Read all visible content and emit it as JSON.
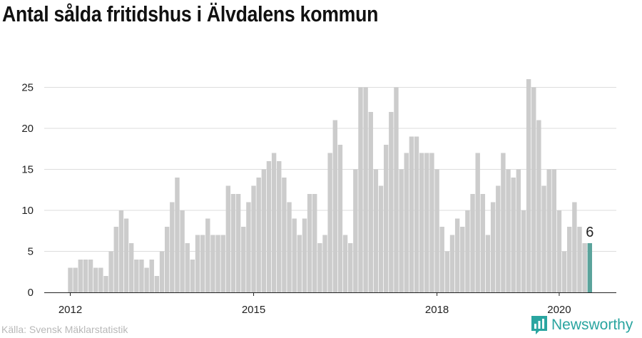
{
  "title": "Antal sålda fritidshus i Älvdalens kommun",
  "source": "Källa: Svensk Mäklarstatistik",
  "brand": {
    "name": "Newsworthy",
    "color": "#2aa5a0",
    "icon": "newsworthy-logo-icon"
  },
  "colors": {
    "bar": "#cccccc",
    "highlight": "#5aa39b",
    "grid": "#dddddd",
    "axis": "#222222"
  },
  "chart_data": {
    "type": "bar",
    "ylim": [
      0,
      26
    ],
    "yticks": [
      0,
      5,
      10,
      15,
      20,
      25
    ],
    "xticks": [
      {
        "label": "2012",
        "index": 0
      },
      {
        "label": "2015",
        "index": 36
      },
      {
        "label": "2018",
        "index": 72
      },
      {
        "label": "2020",
        "index": 96
      }
    ],
    "series": [
      {
        "values": [
          3,
          3,
          4,
          4,
          4,
          3,
          3,
          2,
          5,
          8,
          10,
          9,
          6,
          4,
          4,
          3,
          4,
          2,
          5,
          8,
          11,
          14,
          10,
          6,
          4,
          7,
          7,
          9,
          7,
          7,
          7,
          13,
          12,
          12,
          8,
          11,
          13,
          14,
          15,
          16,
          17,
          16,
          14,
          11,
          9,
          7,
          9,
          12,
          12,
          6,
          7,
          17,
          21,
          18,
          7,
          6,
          15,
          25,
          25,
          22,
          15,
          13,
          18,
          22,
          25,
          15,
          17,
          19,
          19,
          17,
          17,
          17,
          15,
          8,
          5,
          7,
          9,
          8,
          10,
          12,
          17,
          12,
          7,
          11,
          13,
          17,
          15,
          14,
          15,
          10,
          26,
          25,
          21,
          13,
          15,
          15,
          10,
          5,
          8,
          11,
          8,
          6,
          6
        ]
      }
    ],
    "highlight": {
      "index": 102,
      "value": 6,
      "label": "6"
    }
  }
}
